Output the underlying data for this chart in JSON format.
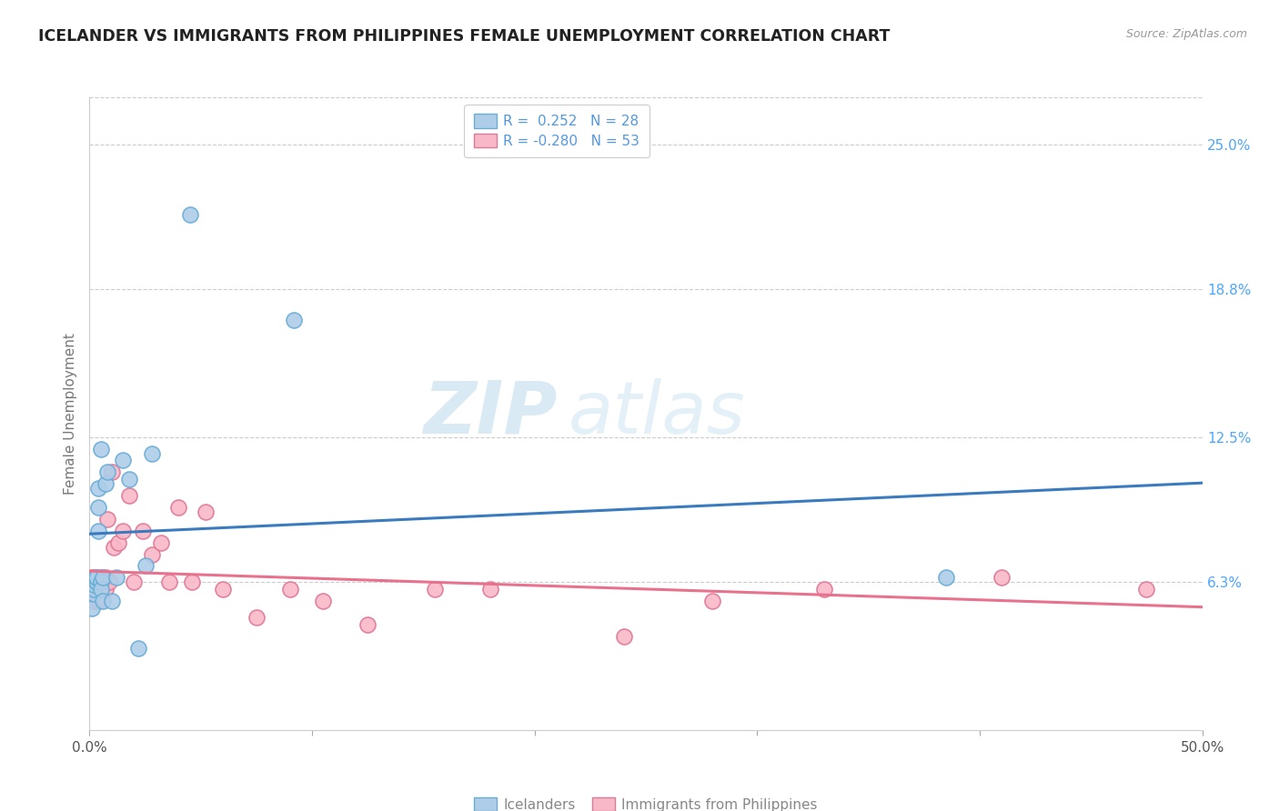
{
  "title": "ICELANDER VS IMMIGRANTS FROM PHILIPPINES FEMALE UNEMPLOYMENT CORRELATION CHART",
  "source": "Source: ZipAtlas.com",
  "ylabel": "Female Unemployment",
  "yticks_right": [
    "25.0%",
    "18.8%",
    "12.5%",
    "6.3%"
  ],
  "yticks_right_vals": [
    0.25,
    0.188,
    0.125,
    0.063
  ],
  "xmin": 0.0,
  "xmax": 0.5,
  "ymin": 0.0,
  "ymax": 0.27,
  "legend_r1": "R =  0.252   N = 28",
  "legend_r2": "R = -0.280   N = 53",
  "watermark_zip": "ZIP",
  "watermark_atlas": "atlas",
  "blue_color": "#aecde8",
  "blue_edge": "#6aaed6",
  "pink_color": "#f9b8c8",
  "pink_edge": "#e07898",
  "blue_line_color": "#3a7bbf",
  "pink_line_color": "#e8728e",
  "legend_blue_color": "#aecde8",
  "legend_blue_edge": "#6aaed6",
  "legend_pink_color": "#f9b8c8",
  "legend_pink_edge": "#e07898",
  "icelanders_x": [
    0.001,
    0.002,
    0.002,
    0.002,
    0.003,
    0.003,
    0.003,
    0.003,
    0.004,
    0.004,
    0.004,
    0.005,
    0.005,
    0.005,
    0.006,
    0.006,
    0.007,
    0.008,
    0.01,
    0.012,
    0.015,
    0.018,
    0.022,
    0.025,
    0.028,
    0.045,
    0.092,
    0.385
  ],
  "icelanders_y": [
    0.052,
    0.058,
    0.06,
    0.062,
    0.063,
    0.063,
    0.065,
    0.065,
    0.085,
    0.095,
    0.103,
    0.063,
    0.12,
    0.06,
    0.065,
    0.055,
    0.105,
    0.11,
    0.055,
    0.065,
    0.115,
    0.107,
    0.035,
    0.07,
    0.118,
    0.22,
    0.175,
    0.065
  ],
  "philippines_x": [
    0.001,
    0.001,
    0.001,
    0.002,
    0.002,
    0.002,
    0.002,
    0.002,
    0.003,
    0.003,
    0.003,
    0.003,
    0.003,
    0.004,
    0.004,
    0.004,
    0.004,
    0.004,
    0.005,
    0.005,
    0.005,
    0.005,
    0.006,
    0.006,
    0.007,
    0.007,
    0.008,
    0.009,
    0.01,
    0.011,
    0.013,
    0.015,
    0.018,
    0.02,
    0.024,
    0.028,
    0.032,
    0.036,
    0.04,
    0.046,
    0.052,
    0.06,
    0.075,
    0.09,
    0.105,
    0.125,
    0.155,
    0.18,
    0.24,
    0.28,
    0.33,
    0.41,
    0.475
  ],
  "philippines_y": [
    0.063,
    0.06,
    0.065,
    0.055,
    0.058,
    0.06,
    0.063,
    0.065,
    0.063,
    0.06,
    0.063,
    0.063,
    0.065,
    0.063,
    0.055,
    0.063,
    0.06,
    0.062,
    0.063,
    0.06,
    0.063,
    0.065,
    0.065,
    0.063,
    0.06,
    0.065,
    0.09,
    0.063,
    0.11,
    0.078,
    0.08,
    0.085,
    0.1,
    0.063,
    0.085,
    0.075,
    0.08,
    0.063,
    0.095,
    0.063,
    0.093,
    0.06,
    0.048,
    0.06,
    0.055,
    0.045,
    0.06,
    0.06,
    0.04,
    0.055,
    0.06,
    0.065,
    0.06
  ]
}
